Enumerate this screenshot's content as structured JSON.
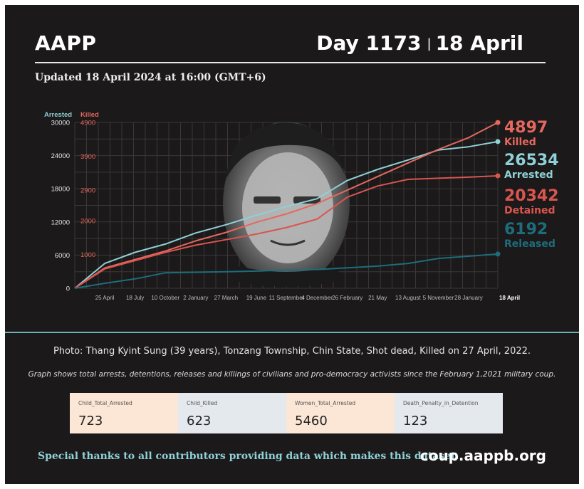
{
  "header": {
    "org": "AAPP",
    "day": "Day 1173",
    "date": "18 April",
    "updated": "Updated 18 April 2024 at 16:00 (GMT+6)"
  },
  "colors": {
    "background": "#1b1919",
    "arrested": "#8fd0d6",
    "killed": "#e5685f",
    "detained": "#d9554f",
    "released": "#1d6d7d",
    "accent_rule": "#6fb3b8"
  },
  "chart_data": {
    "type": "line",
    "left_axis_label": "Arrested",
    "right_axis_label": "Killed",
    "left_ticks": [
      "0",
      "6000",
      "12000",
      "18000",
      "24000",
      "30000"
    ],
    "right_ticks": [
      "1000",
      "2000",
      "2900",
      "3900",
      "4900"
    ],
    "x_tick_labels": [
      "25 April",
      "18 July",
      "10 October",
      "2 January",
      "27 March",
      "19 June",
      "11 September",
      "4 December",
      "26 February",
      "21 May",
      "13 August",
      "5 November",
      "28 January",
      "18 April"
    ],
    "ylim_left": [
      0,
      30000
    ],
    "ylim_right": [
      0,
      4900
    ],
    "grid": true,
    "legend": "right",
    "x_points": [
      "2021-02-01",
      "2021-04-25",
      "2021-07-18",
      "2021-10-10",
      "2022-01-02",
      "2022-03-27",
      "2022-06-19",
      "2022-09-11",
      "2022-12-04",
      "2023-02-26",
      "2023-05-21",
      "2023-08-13",
      "2023-11-05",
      "2024-01-28",
      "2024-04-18"
    ],
    "series": [
      {
        "name": "Arrested",
        "axis": "left",
        "values": [
          0,
          4500,
          6500,
          8000,
          10000,
          11500,
          13200,
          14800,
          16200,
          19500,
          21500,
          23200,
          25000,
          25600,
          26534
        ],
        "final_label": "26534",
        "label_text": "Arrested"
      },
      {
        "name": "Killed",
        "axis": "right",
        "values": [
          0,
          600,
          850,
          1100,
          1400,
          1650,
          1950,
          2200,
          2500,
          2900,
          3300,
          3700,
          4100,
          4450,
          4897
        ],
        "final_label": "4897",
        "label_text": "Killed"
      },
      {
        "name": "Detained",
        "axis": "left",
        "values": [
          0,
          3500,
          5000,
          6500,
          7800,
          8800,
          9800,
          11000,
          12500,
          16500,
          18500,
          19700,
          19900,
          20100,
          20342
        ],
        "final_label": "20342",
        "label_text": "Detained"
      },
      {
        "name": "Released",
        "axis": "left",
        "values": [
          0,
          900,
          1700,
          2800,
          2900,
          3000,
          3100,
          3300,
          3400,
          3700,
          4000,
          4500,
          5400,
          5800,
          6192
        ],
        "final_label": "6192",
        "label_text": "Released"
      }
    ]
  },
  "caption": "Photo: Thang Kyint Sung (39 years), Tonzang Township, Chin State, Shot dead, Killed on 27 April, 2022.",
  "note": "Graph shows total arrests, detentions, releases and killings of civilians and pro-democracy activists since the February 1,2021 military coup.",
  "cards": [
    {
      "label": "Child_Total_Arrested",
      "value": "723",
      "color": "#fce6d5"
    },
    {
      "label": "Child_Killed",
      "value": "623",
      "color": "#e4e9ee"
    },
    {
      "label": "Women_Total_Arrested",
      "value": "5460",
      "color": "#fce6d5"
    },
    {
      "label": "Death_Penalty_in_Detention",
      "value": "123",
      "color": "#e4e9ee"
    }
  ],
  "footer": {
    "thanks": "Special thanks to all contributors providing data which makes this dataset.",
    "site": "coup.aappb.org"
  }
}
